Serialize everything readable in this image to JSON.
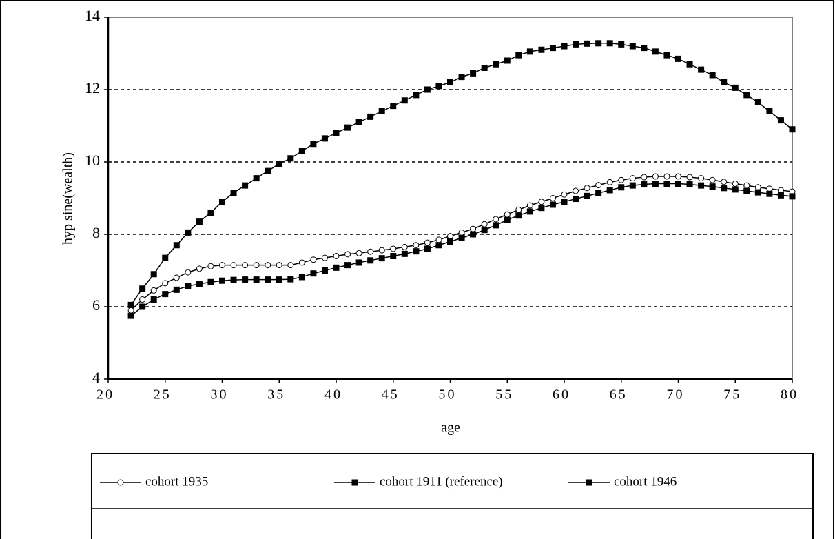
{
  "chart_data": {
    "type": "line",
    "xlabel": "age",
    "ylabel": "hyp sine(wealth)",
    "x": [
      22,
      23,
      24,
      25,
      26,
      27,
      28,
      29,
      30,
      31,
      32,
      33,
      34,
      35,
      36,
      37,
      38,
      39,
      40,
      41,
      42,
      43,
      44,
      45,
      46,
      47,
      48,
      49,
      50,
      51,
      52,
      53,
      54,
      55,
      56,
      57,
      58,
      59,
      60,
      61,
      62,
      63,
      64,
      65,
      66,
      67,
      68,
      69,
      70,
      71,
      72,
      73,
      74,
      75,
      76,
      77,
      78,
      79,
      80
    ],
    "series": [
      {
        "name": "cohort 1935",
        "color": "#000000",
        "marker": "circle-open",
        "values": [
          5.9,
          6.2,
          6.45,
          6.65,
          6.8,
          6.95,
          7.05,
          7.12,
          7.15,
          7.15,
          7.15,
          7.15,
          7.15,
          7.15,
          7.15,
          7.22,
          7.3,
          7.35,
          7.4,
          7.45,
          7.48,
          7.52,
          7.56,
          7.6,
          7.65,
          7.7,
          7.77,
          7.85,
          7.95,
          8.05,
          8.15,
          8.28,
          8.42,
          8.55,
          8.68,
          8.8,
          8.9,
          9.0,
          9.1,
          9.2,
          9.28,
          9.36,
          9.44,
          9.5,
          9.55,
          9.58,
          9.6,
          9.6,
          9.6,
          9.58,
          9.55,
          9.5,
          9.45,
          9.4,
          9.35,
          9.3,
          9.26,
          9.22,
          9.18
        ]
      },
      {
        "name": "cohort 1911 (reference)",
        "color": "#000000",
        "marker": "square",
        "values": [
          5.75,
          6.0,
          6.2,
          6.35,
          6.47,
          6.57,
          6.63,
          6.68,
          6.72,
          6.74,
          6.75,
          6.75,
          6.75,
          6.75,
          6.76,
          6.82,
          6.92,
          7.0,
          7.08,
          7.15,
          7.22,
          7.28,
          7.34,
          7.4,
          7.46,
          7.53,
          7.6,
          7.7,
          7.8,
          7.9,
          8.0,
          8.12,
          8.25,
          8.4,
          8.52,
          8.63,
          8.73,
          8.82,
          8.9,
          8.98,
          9.06,
          9.14,
          9.22,
          9.3,
          9.35,
          9.38,
          9.4,
          9.4,
          9.4,
          9.38,
          9.35,
          9.32,
          9.28,
          9.24,
          9.2,
          9.16,
          9.12,
          9.08,
          9.05
        ]
      },
      {
        "name": "cohort 1946",
        "color": "#000000",
        "marker": "square",
        "values": [
          6.05,
          6.5,
          6.9,
          7.35,
          7.7,
          8.05,
          8.35,
          8.6,
          8.9,
          9.15,
          9.35,
          9.55,
          9.75,
          9.95,
          10.1,
          10.3,
          10.5,
          10.65,
          10.8,
          10.95,
          11.1,
          11.25,
          11.4,
          11.55,
          11.7,
          11.85,
          12.0,
          12.1,
          12.2,
          12.35,
          12.45,
          12.6,
          12.7,
          12.8,
          12.95,
          13.05,
          13.1,
          13.15,
          13.2,
          13.25,
          13.27,
          13.28,
          13.28,
          13.25,
          13.2,
          13.15,
          13.05,
          12.95,
          12.85,
          12.7,
          12.55,
          12.4,
          12.2,
          12.05,
          11.85,
          11.65,
          11.4,
          11.15,
          10.9
        ]
      }
    ],
    "xlim": [
      20,
      80
    ],
    "xticks": [
      20,
      25,
      30,
      35,
      40,
      45,
      50,
      55,
      60,
      65,
      70,
      75,
      80
    ],
    "ylim": [
      4,
      14
    ],
    "yticks": [
      4,
      6,
      8,
      10,
      12,
      14
    ],
    "grid": true,
    "legend": "bottom"
  }
}
